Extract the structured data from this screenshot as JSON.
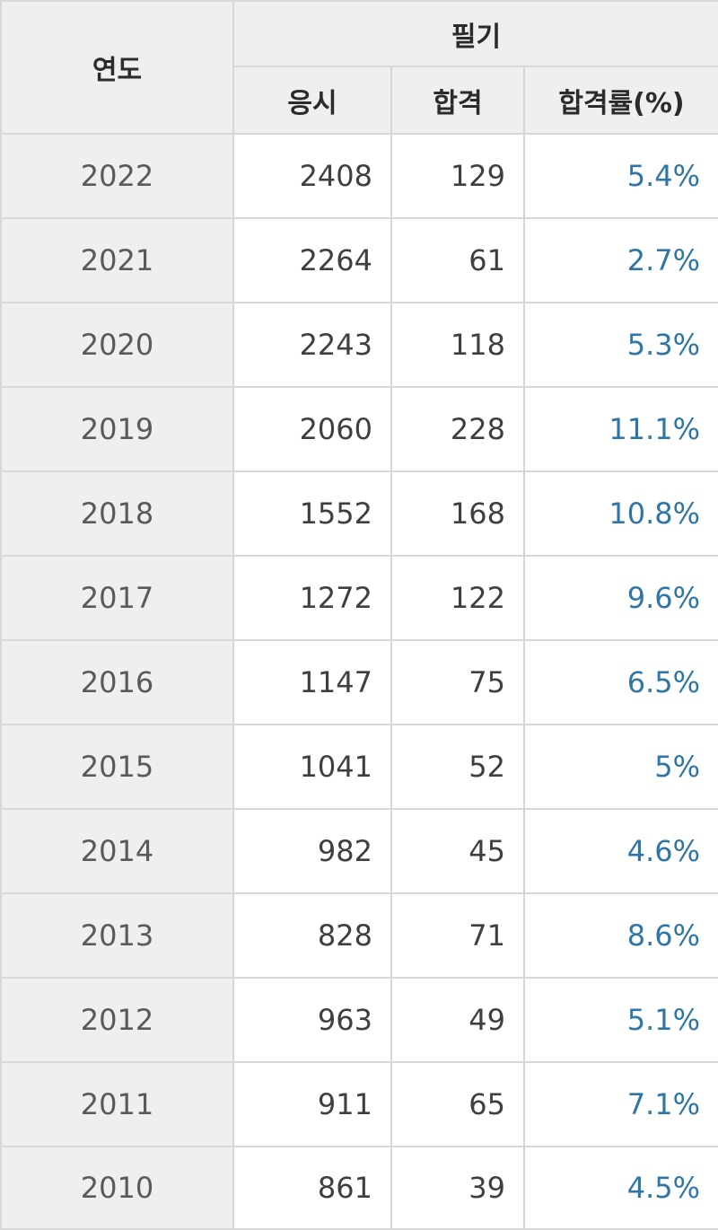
{
  "header": {
    "year_label": "연도",
    "group_label": "필기",
    "applicants_label": "응시",
    "passed_label": "합격",
    "rate_label": "합격률(%)"
  },
  "colors": {
    "header_bg": "#efefef",
    "border": "#d7d7d7",
    "rate_text": "#2f76a6"
  },
  "rows": [
    {
      "year": "2022",
      "applicants": "2408",
      "passed": "129",
      "rate": "5.4%"
    },
    {
      "year": "2021",
      "applicants": "2264",
      "passed": "61",
      "rate": "2.7%"
    },
    {
      "year": "2020",
      "applicants": "2243",
      "passed": "118",
      "rate": "5.3%"
    },
    {
      "year": "2019",
      "applicants": "2060",
      "passed": "228",
      "rate": "11.1%"
    },
    {
      "year": "2018",
      "applicants": "1552",
      "passed": "168",
      "rate": "10.8%"
    },
    {
      "year": "2017",
      "applicants": "1272",
      "passed": "122",
      "rate": "9.6%"
    },
    {
      "year": "2016",
      "applicants": "1147",
      "passed": "75",
      "rate": "6.5%"
    },
    {
      "year": "2015",
      "applicants": "1041",
      "passed": "52",
      "rate": "5%"
    },
    {
      "year": "2014",
      "applicants": "982",
      "passed": "45",
      "rate": "4.6%"
    },
    {
      "year": "2013",
      "applicants": "828",
      "passed": "71",
      "rate": "8.6%"
    },
    {
      "year": "2012",
      "applicants": "963",
      "passed": "49",
      "rate": "5.1%"
    },
    {
      "year": "2011",
      "applicants": "911",
      "passed": "65",
      "rate": "7.1%"
    },
    {
      "year": "2010",
      "applicants": "861",
      "passed": "39",
      "rate": "4.5%"
    }
  ]
}
